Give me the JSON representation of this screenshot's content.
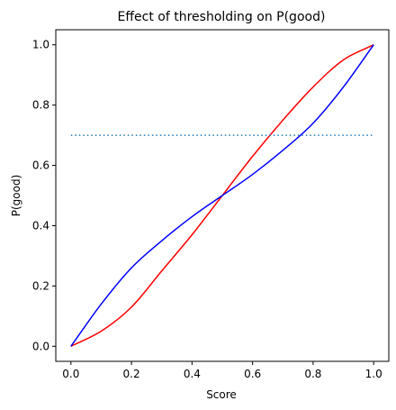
{
  "chart_data": {
    "type": "line",
    "title": "Effect of thresholding on P(good)",
    "xlabel": "Score",
    "ylabel": "P(good)",
    "xlim": [
      -0.05,
      1.05
    ],
    "ylim": [
      -0.05,
      1.05
    ],
    "x_ticks": [
      0.0,
      0.2,
      0.4,
      0.6,
      0.8,
      1.0
    ],
    "x_tick_labels": [
      "0.0",
      "0.2",
      "0.4",
      "0.6",
      "0.8",
      "1.0"
    ],
    "y_ticks": [
      0.0,
      0.2,
      0.4,
      0.6,
      0.8,
      1.0
    ],
    "y_tick_labels": [
      "0.0",
      "0.2",
      "0.4",
      "0.6",
      "0.8",
      "1.0"
    ],
    "grid": false,
    "series": [
      {
        "color": "#ff0000",
        "style": "solid",
        "x": [
          0.0,
          0.1,
          0.2,
          0.3,
          0.4,
          0.5,
          0.6,
          0.7,
          0.8,
          0.9,
          1.0
        ],
        "y": [
          0.0,
          0.05,
          0.13,
          0.25,
          0.37,
          0.5,
          0.63,
          0.75,
          0.86,
          0.95,
          1.0
        ]
      },
      {
        "color": "#0000ff",
        "style": "solid",
        "x": [
          0.0,
          0.1,
          0.2,
          0.3,
          0.4,
          0.5,
          0.6,
          0.7,
          0.8,
          0.9,
          1.0
        ],
        "y": [
          0.0,
          0.14,
          0.26,
          0.35,
          0.43,
          0.5,
          0.57,
          0.65,
          0.74,
          0.86,
          1.0
        ]
      },
      {
        "color": "#1f77b4",
        "style": "dotted",
        "x": [
          0.0,
          1.0
        ],
        "y": [
          0.7,
          0.7
        ]
      }
    ]
  }
}
